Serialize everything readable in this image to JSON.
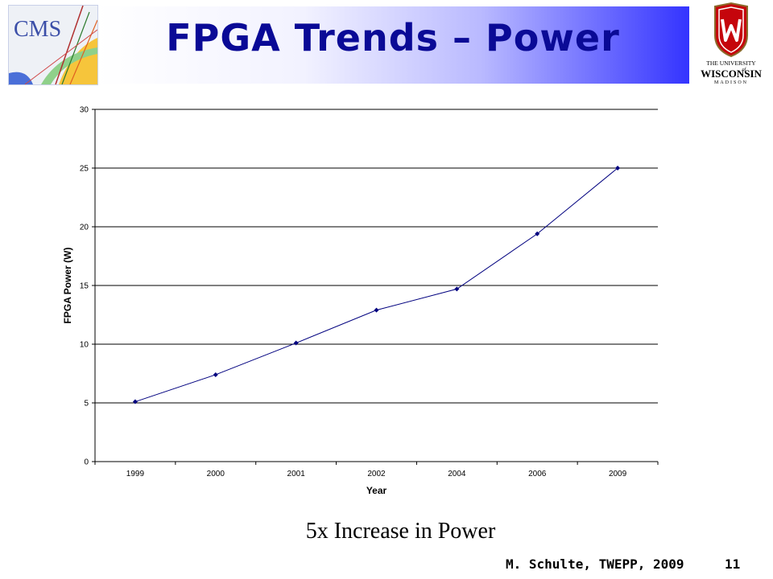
{
  "header": {
    "title": "FPGA Trends – Power",
    "band_color_end": "#3434ff",
    "title_color": "#0a0a96"
  },
  "logos": {
    "left": {
      "icon": "cms-logo-icon",
      "text": "CMS"
    },
    "right": {
      "icon": "university-of-wisconsin-crest-icon",
      "text_top": "THE UNIVERSITY",
      "text_of": "of",
      "text_main": "WISCONSIN",
      "text_bottom": "MADISON",
      "crest_color": "#c5050c"
    }
  },
  "chart_data": {
    "type": "line",
    "categories": [
      "1999",
      "2000",
      "2001",
      "2002",
      "2004",
      "2006",
      "2009"
    ],
    "series": [
      {
        "values": [
          5.1,
          7.4,
          10.1,
          12.9,
          14.7,
          19.4,
          25.0
        ],
        "color": "#00007f"
      }
    ],
    "xlabel": "Year",
    "ylabel": "FPGA Power (W)",
    "ylim": [
      0,
      30
    ],
    "yticks": [
      0,
      5,
      10,
      15,
      20,
      25,
      30
    ],
    "grid": true
  },
  "subtitle": "5x Increase in Power",
  "footer": {
    "author": "M. Schulte, TWEPP, 2009",
    "page": "11"
  }
}
